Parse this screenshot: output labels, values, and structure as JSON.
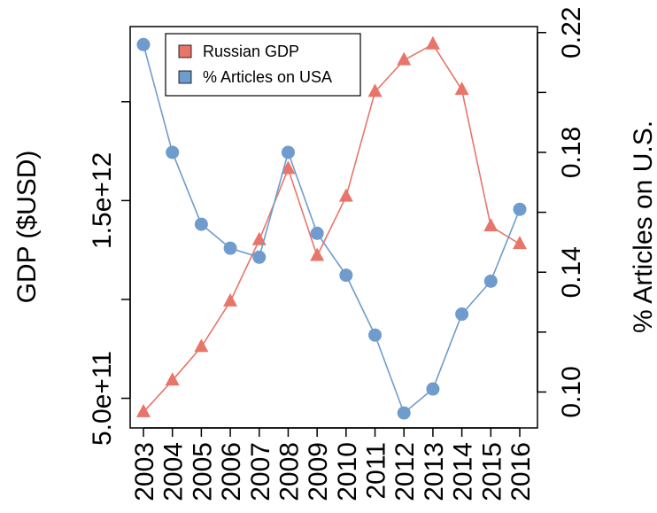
{
  "chart_data": {
    "type": "line",
    "x": [
      2003,
      2004,
      2005,
      2006,
      2007,
      2008,
      2009,
      2010,
      2011,
      2012,
      2013,
      2014,
      2015,
      2016
    ],
    "xticklabels": [
      "2003",
      "2004",
      "2005",
      "2006",
      "2007",
      "2008",
      "2009",
      "2010",
      "2011",
      "2012",
      "2013",
      "2014",
      "2015",
      "2016"
    ],
    "series": [
      {
        "name": "Russian GDP",
        "axis": "left",
        "marker": "triangle",
        "color": "#e8756a",
        "values": [
          430000000000.0,
          590000000000.0,
          760000000000.0,
          990000000000.0,
          1300000000000.0,
          1660000000000.0,
          1220000000000.0,
          1520000000000.0,
          2050000000000.0,
          2210000000000.0,
          2290000000000.0,
          2060000000000.0,
          1370000000000.0,
          1280000000000.0
        ]
      },
      {
        "name": "% Articles on USA",
        "axis": "right",
        "marker": "circle",
        "color": "#6f9ccc",
        "values": [
          0.216,
          0.18,
          0.156,
          0.148,
          0.145,
          0.18,
          0.153,
          0.139,
          0.119,
          0.093,
          0.101,
          0.126,
          0.137,
          0.161
        ]
      }
    ],
    "left_axis": {
      "label": "GDP ($USD)",
      "ylim": [
        350000000000.0,
        2380000000000.0
      ],
      "ticks": [
        500000000000.0,
        1000000000000.0,
        1500000000000.0,
        2000000000000.0
      ],
      "ticklabels": [
        "5.0e+11",
        "",
        "1.5e+12",
        ""
      ]
    },
    "right_axis": {
      "label": "% Articles on U.S.",
      "ylim": [
        0.088,
        0.222
      ],
      "ticks": [
        0.1,
        0.12,
        0.14,
        0.16,
        0.18,
        0.2,
        0.22
      ],
      "ticklabels": [
        "0.10",
        "",
        "0.14",
        "",
        "0.18",
        "",
        "0.22"
      ]
    },
    "legend": {
      "placement": "top-left",
      "entries": [
        "Russian GDP",
        "% Articles on USA"
      ]
    },
    "grid": false
  }
}
